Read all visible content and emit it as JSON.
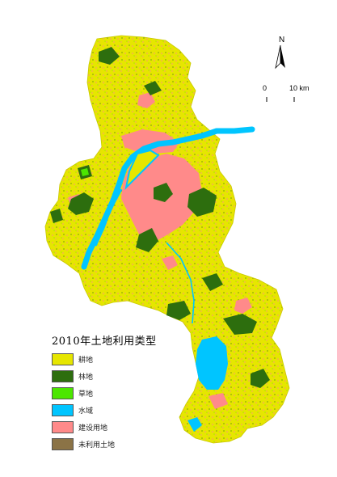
{
  "north": {
    "label": "N"
  },
  "scale": {
    "zero": "0",
    "end": "10 km"
  },
  "legend": {
    "title": "2010年土地利用类型",
    "items": [
      {
        "label": "耕地",
        "color": "#e6e600"
      },
      {
        "label": "林地",
        "color": "#2d6e0e"
      },
      {
        "label": "草地",
        "color": "#4ce600"
      },
      {
        "label": "水域",
        "color": "#00c5ff"
      },
      {
        "label": "建设用地",
        "color": "#ff8a8a"
      },
      {
        "label": "未利用土地",
        "color": "#8b7346"
      }
    ]
  },
  "colors": {
    "cropland": "#e6e600",
    "forest": "#2d6e0e",
    "grass": "#4ce600",
    "water": "#00c5ff",
    "built": "#ff8a8a",
    "unused": "#8b7346"
  }
}
